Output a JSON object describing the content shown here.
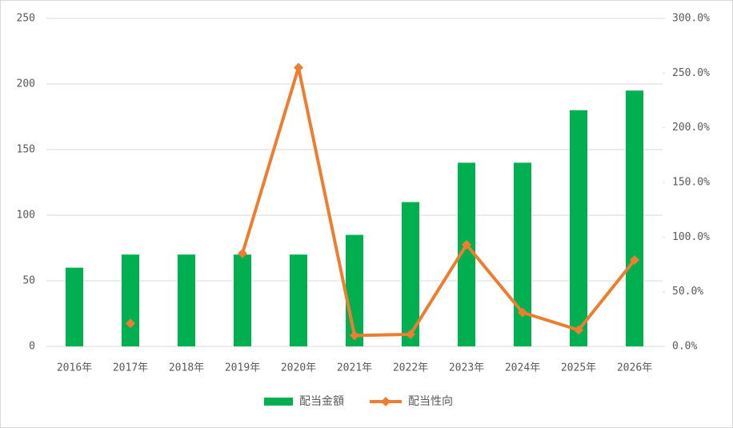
{
  "chart_data": {
    "type": "combo",
    "categories": [
      "2016年",
      "2017年",
      "2018年",
      "2019年",
      "2020年",
      "2021年",
      "2022年",
      "2023年",
      "2024年",
      "2025年",
      "2026年"
    ],
    "series": [
      {
        "name": "配当金額",
        "type": "bar",
        "color": "#00b050",
        "axis": "y",
        "values": [
          60,
          70,
          70,
          70,
          70,
          85,
          110,
          140,
          140,
          180,
          195
        ]
      },
      {
        "name": "配当性向",
        "type": "line",
        "color": "#ed7d31",
        "axis": "y2",
        "values": [
          null,
          21,
          null,
          85,
          255,
          10,
          11,
          93,
          31,
          15,
          79
        ]
      }
    ],
    "ylim": [
      0,
      250
    ],
    "yticks": [
      0,
      50,
      100,
      150,
      200,
      250
    ],
    "y2lim": [
      0,
      300
    ],
    "y2ticks": [
      {
        "value": 0,
        "label": "0.0%"
      },
      {
        "value": 50,
        "label": "50.0%"
      },
      {
        "value": 100,
        "label": "100.0%"
      },
      {
        "value": 150,
        "label": "150.0%"
      },
      {
        "value": 200,
        "label": "200.0%"
      },
      {
        "value": 250,
        "label": "250.0%"
      },
      {
        "value": 300,
        "label": "300.0%"
      }
    ],
    "grid": true,
    "legend": "bottom"
  }
}
